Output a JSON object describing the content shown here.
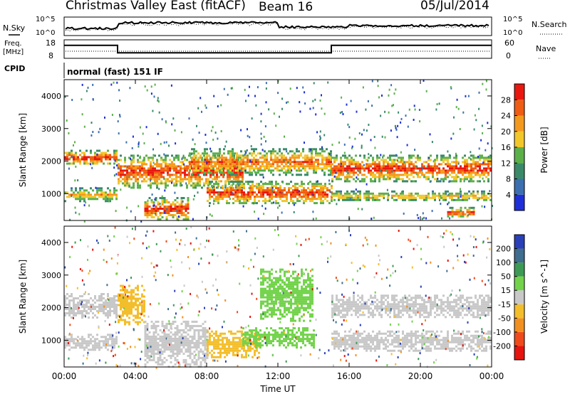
{
  "header": {
    "title": "Christmas Valley East (fitACF)",
    "beam": "Beam 16",
    "date": "05/Jul/2014"
  },
  "status": {
    "nsky_label": "N.Sky",
    "nsearch_label": "N.Search",
    "nsky_ticks": [
      "10^5",
      "10^0"
    ],
    "nsearch_ticks": [
      "10^5",
      "10^0"
    ],
    "freq_label": [
      "Freq.",
      "[MHz]"
    ],
    "freq_ticks": [
      "18",
      "8"
    ],
    "nave_label": "Nave",
    "nave_ticks": [
      "60",
      "0"
    ],
    "cpid_label": "CPID",
    "cpid_text": "normal (fast) 151 IF",
    "freq_steps": [
      {
        "t": 0,
        "f": 15
      },
      {
        "t": 3,
        "f": 11
      },
      {
        "t": 15,
        "f": 15
      },
      {
        "t": 24,
        "f": 15
      }
    ]
  },
  "panels": {
    "ylabel": "Slant Range [km]",
    "xlabel": "Time UT",
    "y_ticks": [
      "1000",
      "2000",
      "3000",
      "4000"
    ],
    "x_ticks": [
      "00:00",
      "04:00",
      "08:00",
      "12:00",
      "16:00",
      "20:00",
      "00:00"
    ]
  },
  "power_bar": {
    "label": "Power [dB]",
    "ticks": [
      "4",
      "8",
      "12",
      "16",
      "20",
      "24",
      "28"
    ],
    "colors": [
      "#1f2fd8",
      "#3c6fb0",
      "#3a8a6a",
      "#5cb04a",
      "#f2c72a",
      "#f39a1e",
      "#ef5c14",
      "#e8180f"
    ]
  },
  "velocity_bar": {
    "label": "Velocity [m s^-1]",
    "ticks": [
      "200",
      "100",
      "50",
      "15",
      "-15",
      "-50",
      "-100",
      "-200"
    ],
    "colors": [
      "#2a40b8",
      "#3f6e8e",
      "#3d9a55",
      "#72d34a",
      "#c8c8c8",
      "#f3be2c",
      "#f19020",
      "#ef4a1c",
      "#e5140f"
    ]
  },
  "chart_data": [
    {
      "type": "heatmap",
      "title": "Power [dB]",
      "xlabel": "Time UT",
      "ylabel": "Slant Range [km]",
      "xlim": [
        0,
        24
      ],
      "ylim": [
        180,
        4500
      ],
      "bands": [
        {
          "t0": 0.0,
          "t1": 3.0,
          "r0": 1900,
          "r1": 2350,
          "peak_db": 28
        },
        {
          "t0": 0.0,
          "t1": 3.0,
          "r0": 800,
          "r1": 1200,
          "peak_db": 20
        },
        {
          "t0": 3.0,
          "t1": 10.0,
          "r0": 1200,
          "r1": 2200,
          "peak_db": 28
        },
        {
          "t0": 4.5,
          "t1": 7.0,
          "r0": 200,
          "r1": 900,
          "peak_db": 28
        },
        {
          "t0": 7.0,
          "t1": 15.0,
          "r0": 1600,
          "r1": 2400,
          "peak_db": 24
        },
        {
          "t0": 8.0,
          "t1": 15.0,
          "r0": 700,
          "r1": 1400,
          "peak_db": 28
        },
        {
          "t0": 15.0,
          "t1": 24.0,
          "r0": 1400,
          "r1": 2200,
          "peak_db": 28
        },
        {
          "t0": 15.0,
          "t1": 24.0,
          "r0": 800,
          "r1": 1100,
          "peak_db": 20
        },
        {
          "t0": 21.5,
          "t1": 23.0,
          "r0": 300,
          "r1": 600,
          "peak_db": 28
        }
      ]
    },
    {
      "type": "heatmap",
      "title": "Velocity [m s^-1]",
      "xlabel": "Time UT",
      "ylabel": "Slant Range [km]",
      "xlim": [
        0,
        24
      ],
      "ylim": [
        180,
        4500
      ],
      "bands": [
        {
          "t0": 0.0,
          "t1": 3.0,
          "r0": 1700,
          "r1": 2450,
          "velocity": 0
        },
        {
          "t0": 0.0,
          "t1": 3.0,
          "r0": 700,
          "r1": 1200,
          "velocity": 0
        },
        {
          "t0": 3.0,
          "t1": 4.5,
          "r0": 1500,
          "r1": 2700,
          "velocity": -30
        },
        {
          "t0": 4.5,
          "t1": 8.0,
          "r0": 200,
          "r1": 1600,
          "velocity": 0
        },
        {
          "t0": 8.0,
          "t1": 11.0,
          "r0": 500,
          "r1": 1300,
          "velocity": -30
        },
        {
          "t0": 11.0,
          "t1": 14.0,
          "r0": 1600,
          "r1": 3200,
          "velocity": 30
        },
        {
          "t0": 10.0,
          "t1": 14.0,
          "r0": 800,
          "r1": 1400,
          "velocity": 30
        },
        {
          "t0": 15.0,
          "t1": 24.0,
          "r0": 1700,
          "r1": 2400,
          "velocity": 0
        },
        {
          "t0": 15.0,
          "t1": 24.0,
          "r0": 700,
          "r1": 1300,
          "velocity": 0
        }
      ]
    }
  ]
}
